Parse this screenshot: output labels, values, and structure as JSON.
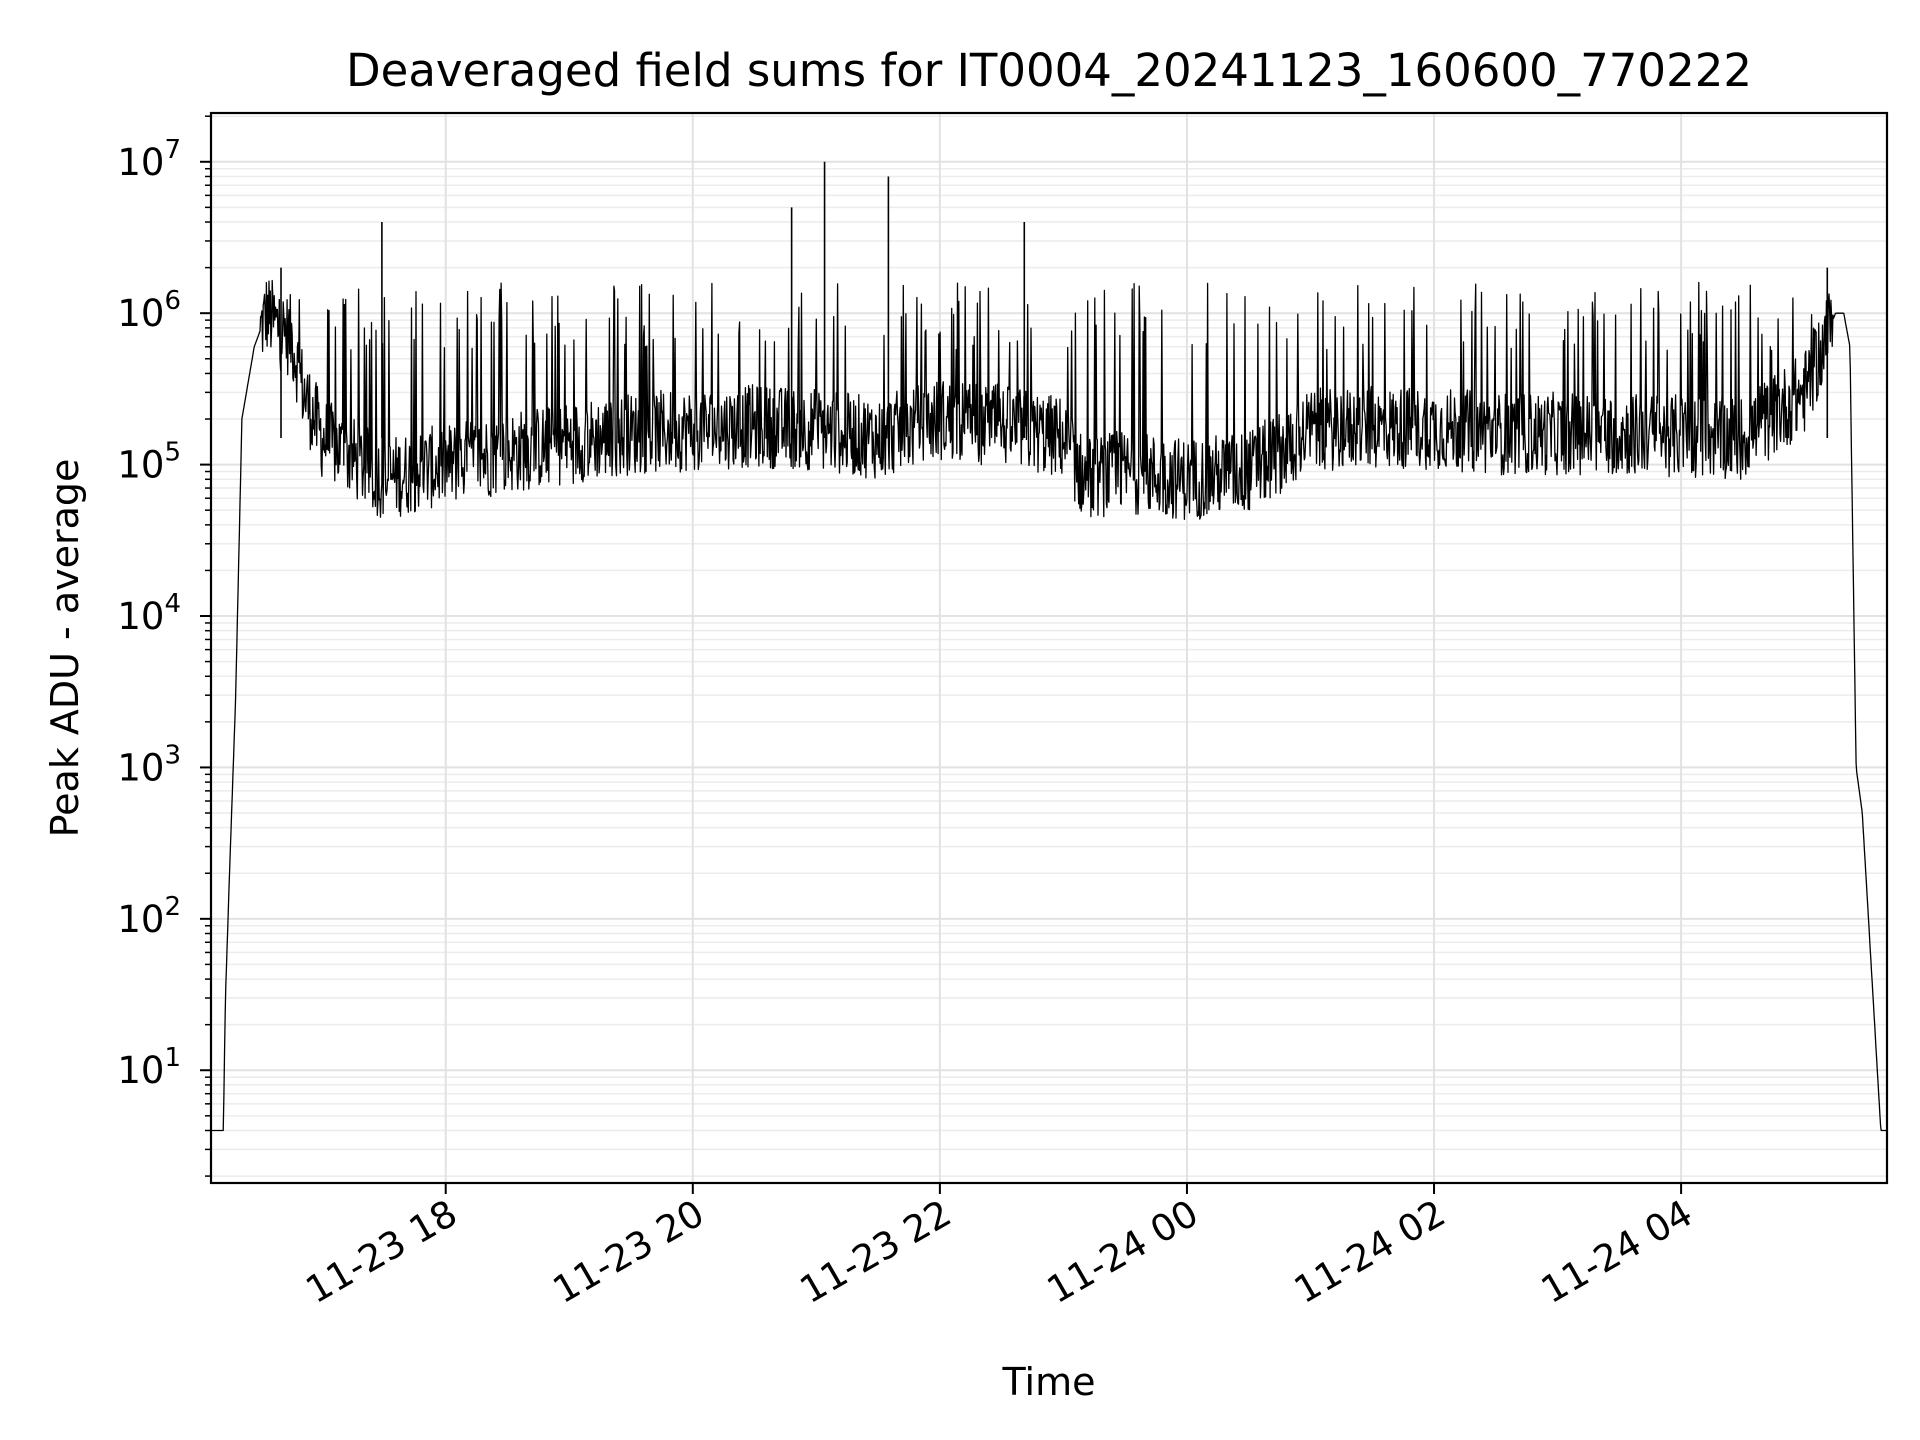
{
  "chart_data": {
    "type": "line",
    "title": "Deaveraged field sums for IT0004_20241123_160600_770222",
    "xlabel": "Time",
    "ylabel": "Peak ADU - average",
    "yscale": "log",
    "ylim": [
      1.8,
      21000000.0
    ],
    "xlim": [
      "2024-11-23 16:06",
      "2024-11-24 05:40"
    ],
    "grid": "on (major and minor)",
    "line_color": "#000000",
    "x_ticks": [
      {
        "value": "2024-11-23 18:00",
        "label": "11-23 18"
      },
      {
        "value": "2024-11-23 20:00",
        "label": "11-23 20"
      },
      {
        "value": "2024-11-23 22:00",
        "label": "11-23 22"
      },
      {
        "value": "2024-11-24 00:00",
        "label": "11-24 00"
      },
      {
        "value": "2024-11-24 02:00",
        "label": "11-24 02"
      },
      {
        "value": "2024-11-24 04:00",
        "label": "11-24 04"
      }
    ],
    "y_ticks": [
      {
        "value": 10,
        "base": "10",
        "exp": "1"
      },
      {
        "value": 100,
        "base": "10",
        "exp": "2"
      },
      {
        "value": 1000,
        "base": "10",
        "exp": "3"
      },
      {
        "value": 10000,
        "base": "10",
        "exp": "4"
      },
      {
        "value": 100000,
        "base": "10",
        "exp": "5"
      },
      {
        "value": 1000000,
        "base": "10",
        "exp": "6"
      },
      {
        "value": 10000000,
        "base": "10",
        "exp": "7"
      }
    ],
    "series": [
      {
        "x": [
          "2024-11-23 16:06",
          "2024-11-23 16:12",
          "2024-11-23 16:13",
          "2024-11-23 16:15",
          "2024-11-23 16:18",
          "2024-11-23 16:21",
          "2024-11-23 16:27",
          "2024-11-23 16:33",
          "2024-11-23 16:39",
          "2024-11-23 16:45",
          "2024-11-23 16:51",
          "2024-11-23 17:00",
          "2024-11-23 17:15",
          "2024-11-23 17:30",
          "2024-11-23 17:45",
          "2024-11-23 18:00",
          "2024-11-23 18:30",
          "2024-11-23 19:00",
          "2024-11-23 19:30",
          "2024-11-23 20:00",
          "2024-11-23 20:30",
          "2024-11-23 21:00",
          "2024-11-23 21:30",
          "2024-11-23 22:00",
          "2024-11-23 22:30",
          "2024-11-23 23:00",
          "2024-11-23 23:10",
          "2024-11-23 23:30",
          "2024-11-24 00:00",
          "2024-11-24 00:30",
          "2024-11-24 00:45",
          "2024-11-24 01:00",
          "2024-11-24 01:30",
          "2024-11-24 02:00",
          "2024-11-24 02:30",
          "2024-11-24 03:00",
          "2024-11-24 03:30",
          "2024-11-24 04:00",
          "2024-11-24 04:30",
          "2024-11-24 05:00",
          "2024-11-24 05:15",
          "2024-11-24 05:19",
          "2024-11-24 05:22",
          "2024-11-24 05:25",
          "2024-11-24 05:28",
          "2024-11-24 05:31",
          "2024-11-24 05:34",
          "2024-11-24 05:37",
          "2024-11-24 05:40"
        ],
        "y": [
          4,
          4,
          30,
          200,
          3000,
          200000,
          600000,
          1000000,
          800000,
          700000,
          300000,
          150000,
          110000,
          80000,
          90000,
          100000,
          120000,
          140000,
          160000,
          170000,
          180000,
          170000,
          150000,
          200000,
          180000,
          150000,
          80000,
          90000,
          80000,
          90000,
          120000,
          170000,
          175000,
          175000,
          160000,
          160000,
          160000,
          155000,
          150000,
          300000,
          1000000,
          1000000,
          600000,
          1000,
          500,
          100,
          20,
          4,
          4
        ]
      }
    ],
    "spikes": [
      {
        "x": "2024-11-23 16:40",
        "y": 2000000
      },
      {
        "x": "2024-11-23 17:29",
        "y": 4000000
      },
      {
        "x": "2024-11-23 20:48",
        "y": 5000000
      },
      {
        "x": "2024-11-23 21:04",
        "y": 10000000
      },
      {
        "x": "2024-11-23 21:35",
        "y": 8000000
      },
      {
        "x": "2024-11-23 22:41",
        "y": 4000000
      },
      {
        "x": "2024-11-24 05:11",
        "y": 2000000
      }
    ]
  }
}
